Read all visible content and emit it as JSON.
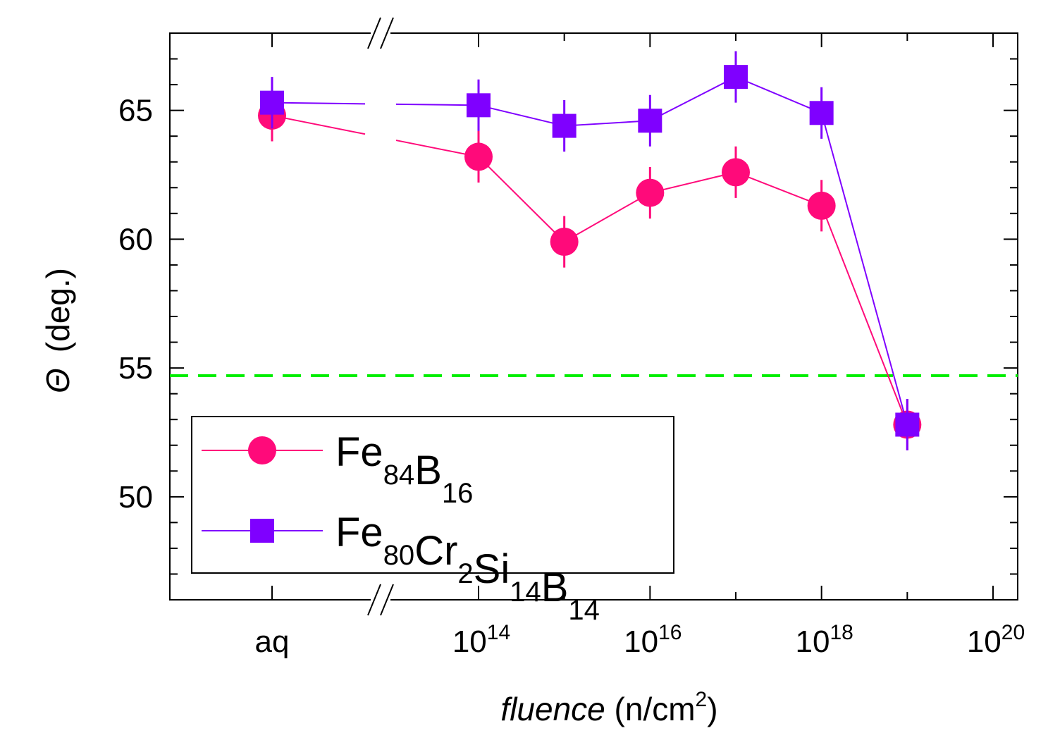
{
  "chart_data": {
    "type": "line",
    "title": "",
    "xlabel": {
      "italic": "fluence",
      "rest": " (n/cm",
      "sup": "2",
      "close": ")"
    },
    "ylabel": {
      "symbol": "Θ",
      "rest": "(deg.)"
    },
    "ylim": [
      46,
      68
    ],
    "xlim_log10": [
      12.8,
      20.3
    ],
    "y_ticks": [
      50,
      55,
      60,
      65
    ],
    "y_minor_step": 1,
    "x_tick_labels": [
      {
        "kind": "text",
        "label": "aq",
        "position": "aq"
      },
      {
        "kind": "pow",
        "base": "10",
        "exp": "14",
        "position": 14
      },
      {
        "kind": "pow",
        "base": "10",
        "exp": "16",
        "position": 16
      },
      {
        "kind": "pow",
        "base": "10",
        "exp": "18",
        "position": 18
      },
      {
        "kind": "pow",
        "base": "10",
        "exp": "20",
        "position": 20
      }
    ],
    "x_break_marker": "//",
    "reference_line": {
      "y": 54.7,
      "style": "dashed",
      "color": "#00ee00"
    },
    "x": [
      "aq",
      "1e14",
      "1e15",
      "1e16",
      "1e17",
      "1e18",
      "1e19"
    ],
    "x_positions": [
      "aq",
      14,
      15,
      16,
      17,
      18,
      19
    ],
    "series": [
      {
        "name": "Fe84B16",
        "legend_parts": [
          [
            "Fe",
            "84"
          ],
          [
            "B",
            "16"
          ]
        ],
        "marker": "circle",
        "color": "#ff0a7a",
        "values": [
          64.8,
          63.2,
          59.9,
          61.8,
          62.6,
          61.3,
          52.8
        ],
        "errors": [
          1.0,
          1.0,
          1.0,
          1.0,
          1.0,
          1.0,
          1.0
        ]
      },
      {
        "name": "Fe80Cr2Si14B14",
        "legend_parts": [
          [
            "Fe",
            "80"
          ],
          [
            "Cr",
            "2"
          ],
          [
            "Si",
            "14"
          ],
          [
            "B",
            "14"
          ]
        ],
        "marker": "square",
        "color": "#7f00ff",
        "values": [
          65.3,
          65.2,
          64.4,
          64.6,
          66.3,
          64.9,
          52.8
        ],
        "errors": [
          1.0,
          1.0,
          1.0,
          1.0,
          1.0,
          1.0,
          1.0
        ]
      }
    ],
    "legend_position": "bottom-left"
  },
  "colors": {
    "axis": "#000000",
    "background": "#ffffff"
  }
}
